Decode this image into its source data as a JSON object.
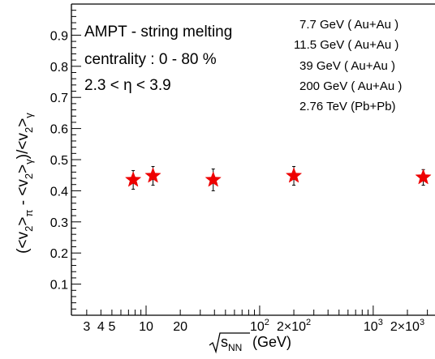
{
  "chart_data": {
    "type": "scatter",
    "title": "",
    "xscale": "log",
    "xlim": [
      2.2,
      3500
    ],
    "ylim": [
      0.0,
      1.0
    ],
    "grid": false,
    "x_ticks": [
      {
        "value": 3,
        "label": "3"
      },
      {
        "value": 4,
        "label": "4"
      },
      {
        "value": 5,
        "label": "5"
      },
      {
        "value": 10,
        "label": "10"
      },
      {
        "value": 20,
        "label": "20"
      },
      {
        "value": 100,
        "label": "10",
        "sup": "2"
      },
      {
        "value": 200,
        "label": "2×10",
        "sup": "2"
      },
      {
        "value": 1000,
        "label": "10",
        "sup": "3"
      },
      {
        "value": 2000,
        "label": "2×10",
        "sup": "3"
      }
    ],
    "y_ticks": [
      {
        "value": 0.1,
        "label": "0.1"
      },
      {
        "value": 0.2,
        "label": "0.2"
      },
      {
        "value": 0.3,
        "label": "0.3"
      },
      {
        "value": 0.4,
        "label": "0.4"
      },
      {
        "value": 0.5,
        "label": "0.5"
      },
      {
        "value": 0.6,
        "label": "0.6"
      },
      {
        "value": 0.7,
        "label": "0.7"
      },
      {
        "value": 0.8,
        "label": "0.8"
      },
      {
        "value": 0.9,
        "label": "0.9"
      }
    ],
    "series": [
      {
        "marker": "star",
        "color": "#ee0000",
        "points": [
          {
            "x": 7.7,
            "y": 0.435,
            "err": 0.03
          },
          {
            "x": 11.5,
            "y": 0.448,
            "err": 0.03
          },
          {
            "x": 39,
            "y": 0.435,
            "err": 0.035
          },
          {
            "x": 200,
            "y": 0.448,
            "err": 0.03
          },
          {
            "x": 2760,
            "y": 0.443,
            "err": 0.025
          }
        ]
      }
    ],
    "annotations": {
      "model": "AMPT - string melting",
      "centrality": "centrality : 0 - 80 %",
      "eta_range": "2.3 < η < 3.9"
    },
    "legend_entries": [
      "7.7 GeV ( Au+Au )",
      "11.5 GeV ( Au+Au )",
      "39 GeV ( Au+Au )",
      "200 GeV ( Au+Au )",
      "2.76 TeV (Pb+Pb)"
    ],
    "xlabel": {
      "root_arg": "s",
      "subscript": "NN",
      "unit": "(GeV)"
    },
    "ylabel": {
      "open1": "(<v",
      "sub1": "2",
      "close1": ">",
      "sub_pi": "π",
      "minus": " - <v",
      "sub2": "2",
      "close2": ">",
      "sub_gamma1": "γ",
      "slash": ")/<v",
      "sub3": "2",
      "close3": ">",
      "sub_gamma2": "γ"
    }
  }
}
